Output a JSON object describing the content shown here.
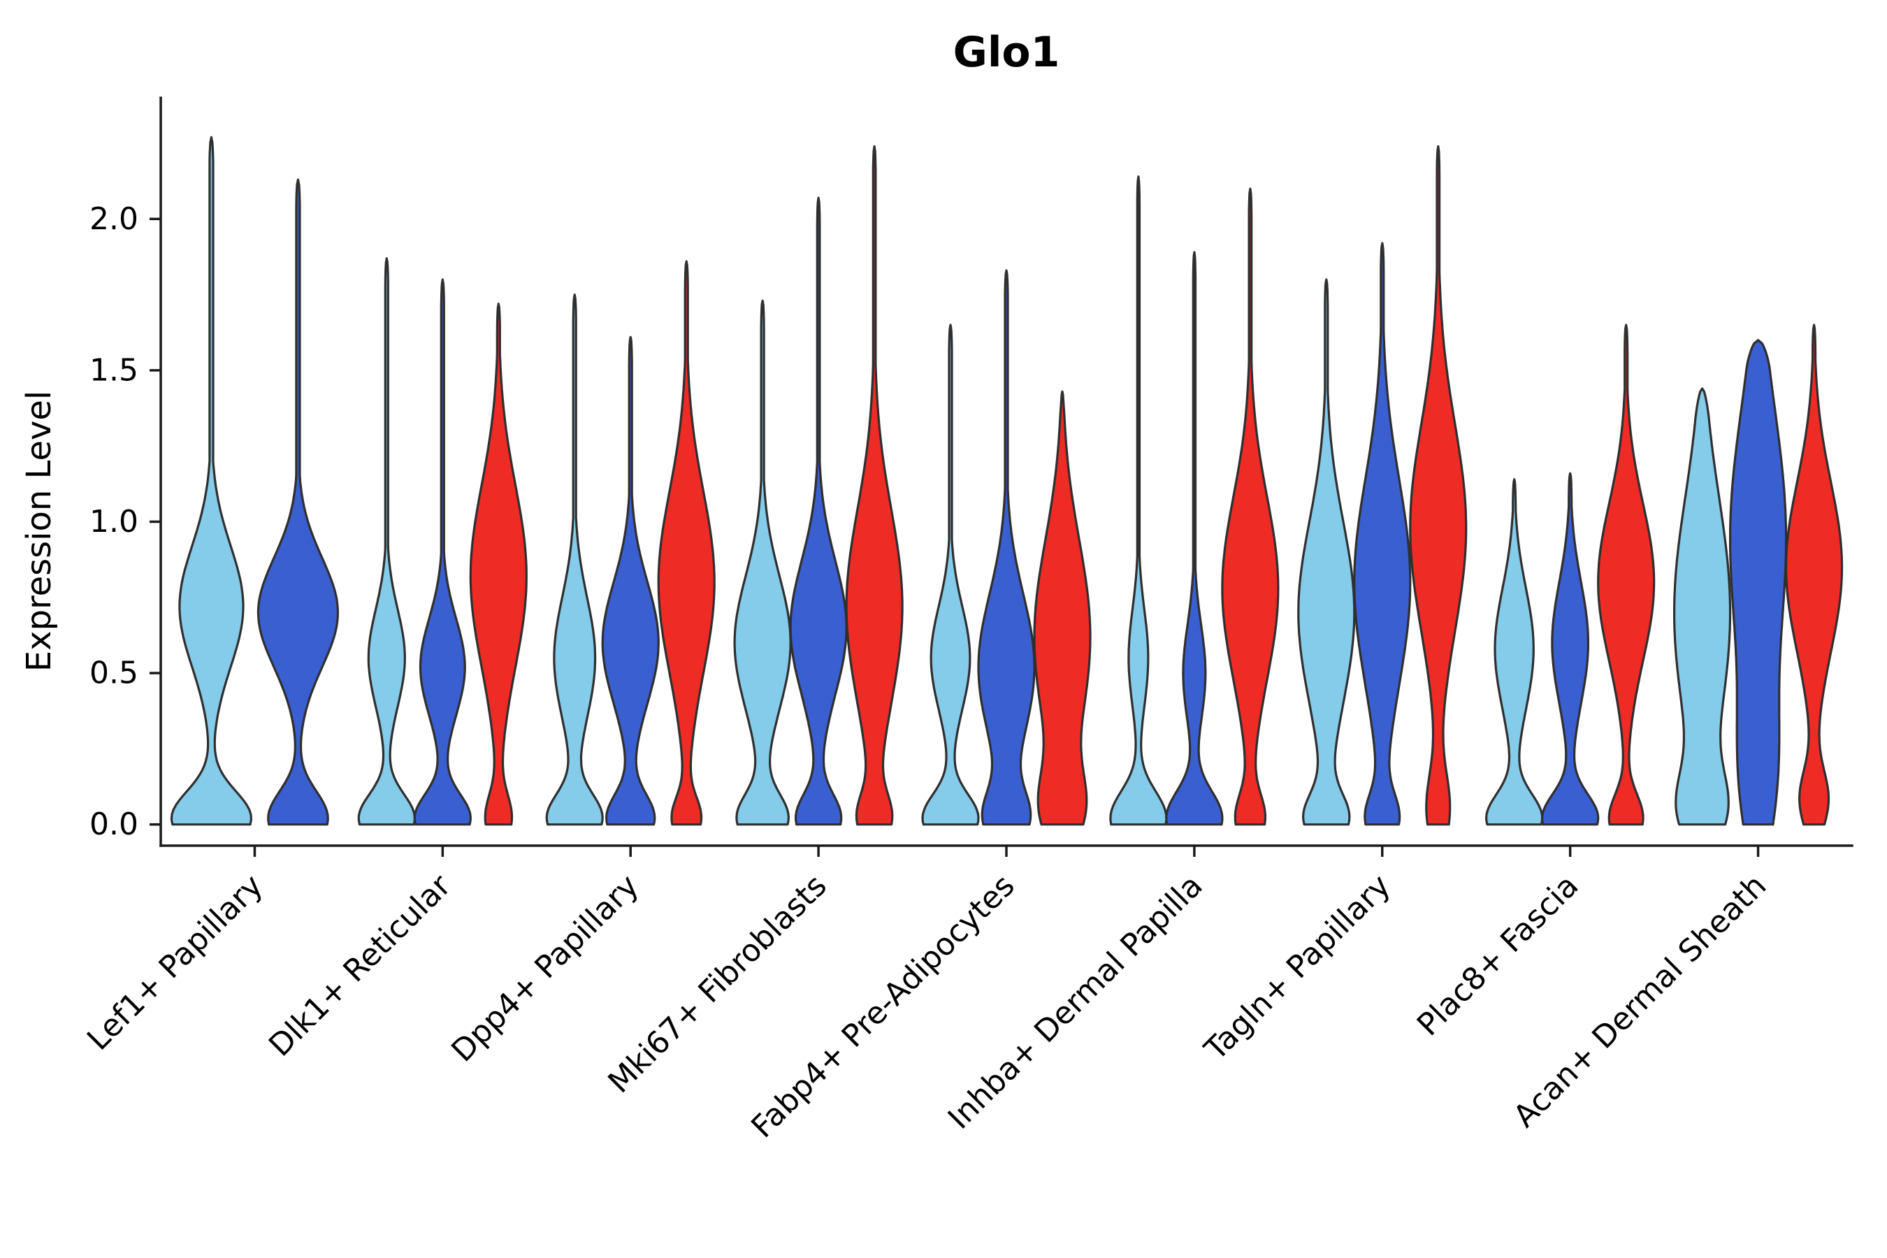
{
  "chart_data": {
    "type": "violin",
    "title": "Glo1",
    "ylabel": "Expression Level",
    "ylim": [
      -0.07,
      2.4
    ],
    "yticks": [
      0.0,
      0.5,
      1.0,
      1.5,
      2.0
    ],
    "grid": false,
    "legend": "none",
    "background": "#ffffff",
    "edge_color": "#2f2f2f",
    "series_colors": [
      "#85CBEA",
      "#3A5FD0",
      "#EE2B25"
    ],
    "categories": [
      {
        "label": "Lef1+ Papillary",
        "violins": [
          {
            "color": 0,
            "max": 2.27,
            "components": [
              [
                0.02,
                0.09,
                1.0
              ],
              [
                0.72,
                0.2,
                0.8
              ]
            ],
            "stem": 0.045
          },
          {
            "color": 1,
            "max": 2.13,
            "components": [
              [
                0.02,
                0.09,
                0.75
              ],
              [
                0.7,
                0.18,
                1.0
              ]
            ],
            "stem": 0.045
          }
        ]
      },
      {
        "label": "Dlk1+ Reticular",
        "violins": [
          {
            "color": 0,
            "max": 1.87,
            "components": [
              [
                0.02,
                0.08,
                1.0
              ],
              [
                0.55,
                0.16,
                0.65
              ]
            ],
            "stem": 0.05
          },
          {
            "color": 1,
            "max": 1.8,
            "components": [
              [
                0.02,
                0.08,
                1.0
              ],
              [
                0.52,
                0.16,
                0.8
              ]
            ],
            "stem": 0.05
          },
          {
            "color": 2,
            "max": 1.72,
            "components": [
              [
                0.02,
                0.08,
                0.45
              ],
              [
                0.82,
                0.3,
                1.0
              ]
            ],
            "stem": 0.05
          }
        ]
      },
      {
        "label": "Dpp4+ Papillary",
        "violins": [
          {
            "color": 0,
            "max": 1.75,
            "components": [
              [
                0.02,
                0.08,
                1.0
              ],
              [
                0.55,
                0.2,
                0.75
              ]
            ],
            "stem": 0.05
          },
          {
            "color": 1,
            "max": 1.61,
            "components": [
              [
                0.02,
                0.08,
                0.85
              ],
              [
                0.6,
                0.2,
                1.0
              ]
            ],
            "stem": 0.05
          },
          {
            "color": 2,
            "max": 1.86,
            "components": [
              [
                0.02,
                0.07,
                0.5
              ],
              [
                0.8,
                0.3,
                1.0
              ]
            ],
            "stem": 0.05
          }
        ]
      },
      {
        "label": "Mki67+ Fibroblasts",
        "violins": [
          {
            "color": 0,
            "max": 1.73,
            "components": [
              [
                0.02,
                0.08,
                0.9
              ],
              [
                0.6,
                0.22,
                1.0
              ]
            ],
            "stem": 0.05
          },
          {
            "color": 1,
            "max": 2.07,
            "components": [
              [
                0.02,
                0.08,
                0.8
              ],
              [
                0.65,
                0.22,
                1.0
              ]
            ],
            "stem": 0.045
          },
          {
            "color": 2,
            "max": 2.24,
            "components": [
              [
                0.02,
                0.08,
                0.55
              ],
              [
                0.72,
                0.32,
                1.0
              ]
            ],
            "stem": 0.045
          }
        ]
      },
      {
        "label": "Fabp4+ Pre-Adipocytes",
        "violins": [
          {
            "color": 0,
            "max": 1.65,
            "components": [
              [
                0.02,
                0.08,
                1.0
              ],
              [
                0.55,
                0.17,
                0.7
              ]
            ],
            "stem": 0.05
          },
          {
            "color": 1,
            "max": 1.83,
            "components": [
              [
                0.02,
                0.09,
                0.75
              ],
              [
                0.52,
                0.24,
                1.0
              ]
            ],
            "stem": 0.05
          },
          {
            "color": 2,
            "max": 1.43,
            "components": [
              [
                0.05,
                0.12,
                0.65
              ],
              [
                0.62,
                0.32,
                1.0
              ]
            ],
            "stem": 0.05
          }
        ]
      },
      {
        "label": "Inhba+ Dermal Papilla",
        "violins": [
          {
            "color": 0,
            "max": 2.14,
            "components": [
              [
                0.02,
                0.09,
                1.0
              ],
              [
                0.55,
                0.16,
                0.35
              ]
            ],
            "stem": 0.04
          },
          {
            "color": 1,
            "max": 1.89,
            "components": [
              [
                0.02,
                0.09,
                1.0
              ],
              [
                0.5,
                0.16,
                0.4
              ]
            ],
            "stem": 0.04
          },
          {
            "color": 2,
            "max": 2.1,
            "components": [
              [
                0.02,
                0.08,
                0.5
              ],
              [
                0.78,
                0.3,
                1.0
              ]
            ],
            "stem": 0.045
          }
        ]
      },
      {
        "label": "Tagln+ Papillary",
        "violins": [
          {
            "color": 0,
            "max": 1.8,
            "components": [
              [
                0.02,
                0.08,
                0.75
              ],
              [
                0.7,
                0.3,
                1.0
              ]
            ],
            "stem": 0.05
          },
          {
            "color": 1,
            "max": 1.92,
            "components": [
              [
                0.02,
                0.08,
                0.55
              ],
              [
                0.8,
                0.34,
                1.0
              ]
            ],
            "stem": 0.05
          },
          {
            "color": 2,
            "max": 2.24,
            "components": [
              [
                0.05,
                0.12,
                0.4
              ],
              [
                0.98,
                0.34,
                1.0
              ]
            ],
            "stem": 0.045
          }
        ]
      },
      {
        "label": "Plac8+ Fascia",
        "violins": [
          {
            "color": 0,
            "max": 1.14,
            "components": [
              [
                0.02,
                0.08,
                1.0
              ],
              [
                0.58,
                0.2,
                0.7
              ]
            ],
            "stem": 0.05
          },
          {
            "color": 1,
            "max": 1.16,
            "components": [
              [
                0.02,
                0.08,
                1.0
              ],
              [
                0.6,
                0.2,
                0.65
              ]
            ],
            "stem": 0.05
          },
          {
            "color": 2,
            "max": 1.65,
            "components": [
              [
                0.02,
                0.08,
                0.6
              ],
              [
                0.8,
                0.26,
                1.0
              ]
            ],
            "stem": 0.05
          }
        ]
      },
      {
        "label": "Acan+ Dermal Sheath",
        "violins": [
          {
            "color": 0,
            "max": 1.44,
            "components": [
              [
                0.05,
                0.12,
                0.7
              ],
              [
                0.7,
                0.38,
                1.0
              ]
            ],
            "stem": 0.05
          },
          {
            "color": 1,
            "max": 1.6,
            "components": [
              [
                0.15,
                0.25,
                0.55
              ],
              [
                0.95,
                0.42,
                1.0
              ]
            ],
            "stem": 0.05
          },
          {
            "color": 2,
            "max": 1.65,
            "components": [
              [
                0.08,
                0.1,
                0.5
              ],
              [
                0.85,
                0.28,
                1.0
              ]
            ],
            "stem": 0.05
          }
        ]
      }
    ]
  }
}
